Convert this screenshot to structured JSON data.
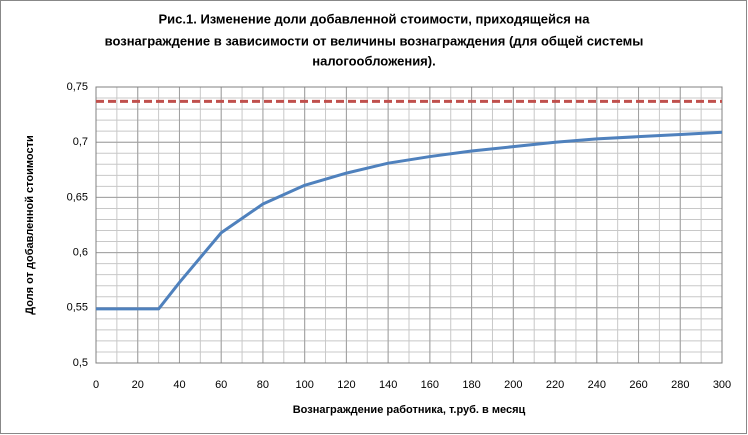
{
  "chart_data": {
    "type": "line",
    "title": [
      "Рис.1. Изменение доли  добавленной стоимости, приходящейся  на",
      "вознаграждение в зависимости от величины вознаграждения (для общей системы",
      "налогообложения)."
    ],
    "xlabel": "Вознаграждение работника,  т.руб. в месяц",
    "ylabel": "Доля от добавленной стоимости",
    "x": [
      0,
      30,
      40,
      60,
      80,
      100,
      120,
      140,
      160,
      180,
      200,
      220,
      240,
      260,
      280,
      300
    ],
    "series": [
      {
        "color": "#4f81bd",
        "values": [
          0.549,
          0.549,
          0.573,
          0.618,
          0.644,
          0.661,
          0.672,
          0.681,
          0.687,
          0.692,
          0.696,
          0.7,
          0.703,
          0.705,
          0.707,
          0.709
        ]
      }
    ],
    "reference_line": {
      "value": 0.737,
      "color": "#c0504d",
      "dashed": true
    },
    "xlim": [
      0,
      300
    ],
    "xticks": [
      0,
      20,
      40,
      60,
      80,
      100,
      120,
      140,
      160,
      180,
      200,
      220,
      240,
      260,
      280,
      300
    ],
    "ylim": [
      0.5,
      0.75
    ],
    "yticks": [
      {
        "value": 0.5,
        "label": "0,5"
      },
      {
        "value": 0.55,
        "label": "0,55"
      },
      {
        "value": 0.6,
        "label": "0,6"
      },
      {
        "value": 0.65,
        "label": "0,65"
      },
      {
        "value": 0.7,
        "label": "0,7"
      },
      {
        "value": 0.75,
        "label": "0,75"
      }
    ],
    "x_minor_step": 10,
    "y_minor_step": 0.01,
    "grid": true
  }
}
